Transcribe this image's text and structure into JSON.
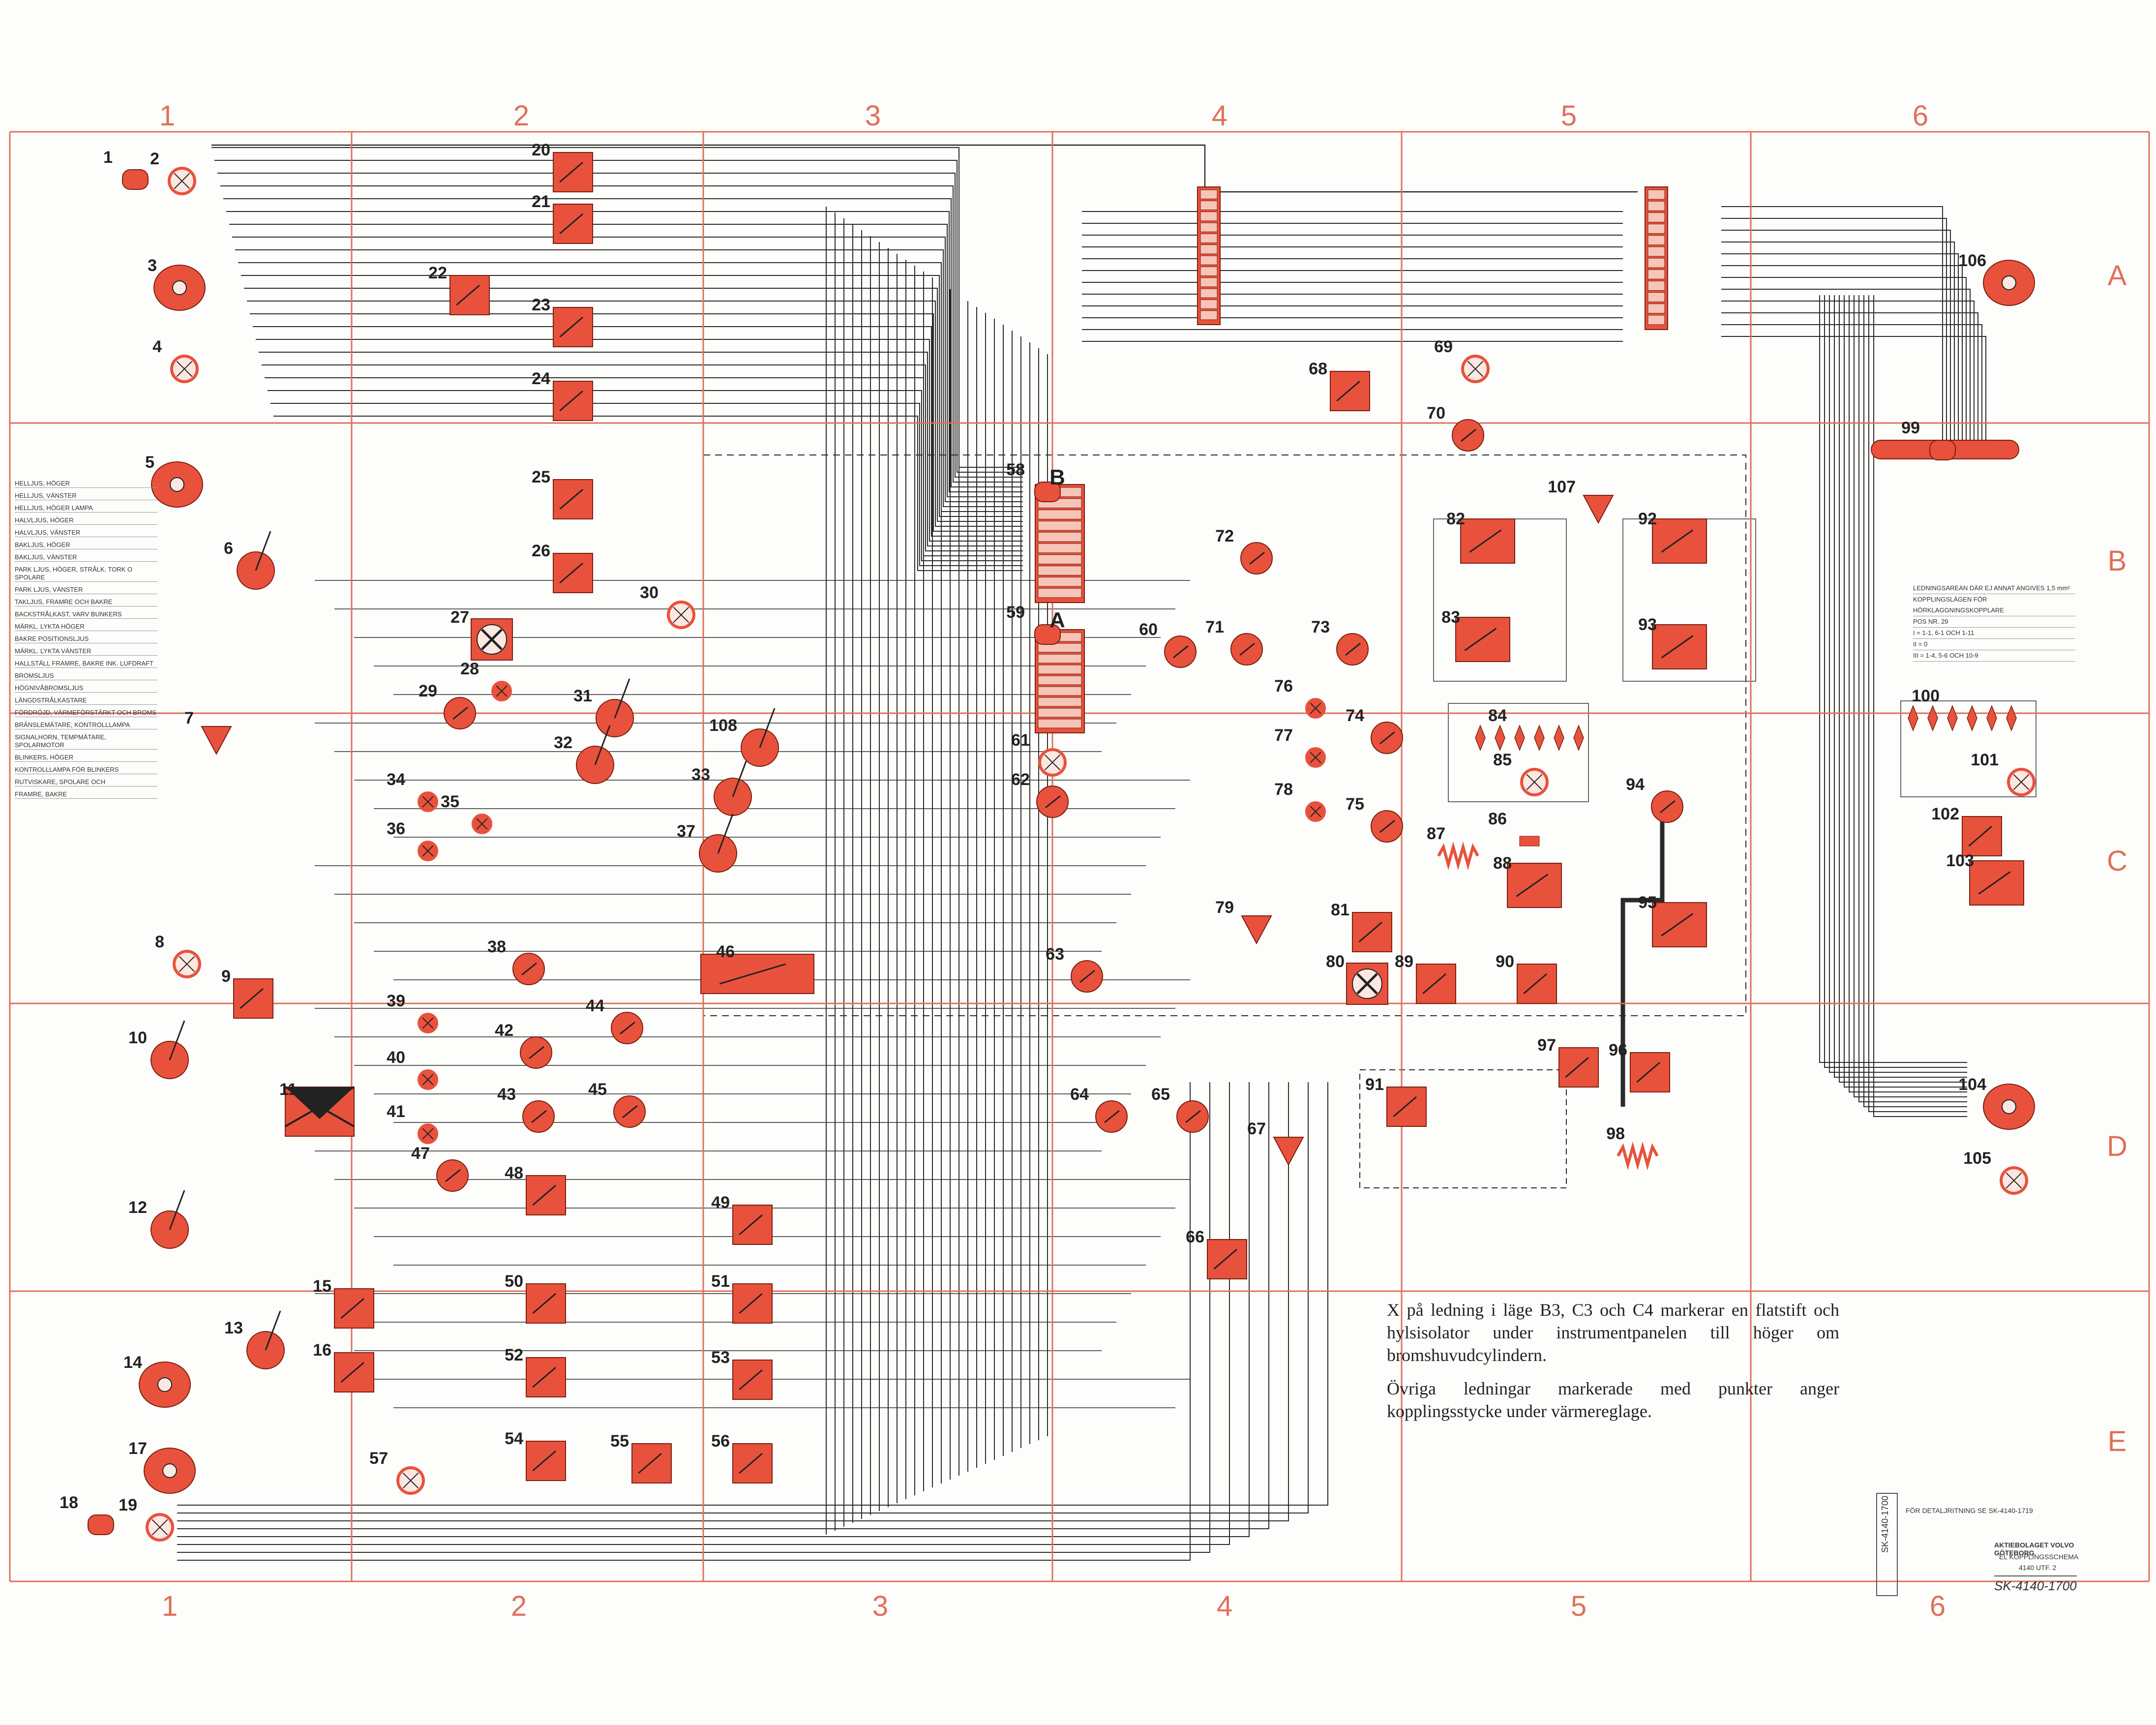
{
  "colors": {
    "component_fill": "#e8523c",
    "grid_line": "#e0705a",
    "wire": "#2a2a2a"
  },
  "grid": {
    "columns": [
      "1",
      "2",
      "3",
      "4",
      "5",
      "6"
    ],
    "rows": [
      "A",
      "B",
      "C",
      "D",
      "E"
    ]
  },
  "connector_letters": [
    "B",
    "A"
  ],
  "components": [
    {
      "n": "1",
      "kind": "connector"
    },
    {
      "n": "2",
      "kind": "lamp"
    },
    {
      "n": "3",
      "kind": "headlamp"
    },
    {
      "n": "4",
      "kind": "lamp"
    },
    {
      "n": "5",
      "kind": "headlamp"
    },
    {
      "n": "6",
      "kind": "switch"
    },
    {
      "n": "7",
      "kind": "horn"
    },
    {
      "n": "8",
      "kind": "lamp"
    },
    {
      "n": "9",
      "kind": "relay"
    },
    {
      "n": "10",
      "kind": "switch"
    },
    {
      "n": "11",
      "kind": "fusebox"
    },
    {
      "n": "12",
      "kind": "switch"
    },
    {
      "n": "13",
      "kind": "switch"
    },
    {
      "n": "14",
      "kind": "headlamp"
    },
    {
      "n": "15",
      "kind": "relay"
    },
    {
      "n": "16",
      "kind": "relay"
    },
    {
      "n": "17",
      "kind": "headlamp"
    },
    {
      "n": "18",
      "kind": "connector"
    },
    {
      "n": "19",
      "kind": "lamp"
    },
    {
      "n": "20",
      "kind": "relay"
    },
    {
      "n": "21",
      "kind": "relay"
    },
    {
      "n": "22",
      "kind": "relay"
    },
    {
      "n": "23",
      "kind": "relay"
    },
    {
      "n": "24",
      "kind": "relay"
    },
    {
      "n": "25",
      "kind": "relay"
    },
    {
      "n": "26",
      "kind": "relay"
    },
    {
      "n": "27",
      "kind": "fan"
    },
    {
      "n": "28",
      "kind": "indicator"
    },
    {
      "n": "29",
      "kind": "gauge"
    },
    {
      "n": "30",
      "kind": "lamp"
    },
    {
      "n": "31",
      "kind": "switch"
    },
    {
      "n": "32",
      "kind": "switch"
    },
    {
      "n": "33",
      "kind": "switch"
    },
    {
      "n": "34",
      "kind": "indicator"
    },
    {
      "n": "35",
      "kind": "indicator"
    },
    {
      "n": "36",
      "kind": "indicator"
    },
    {
      "n": "37",
      "kind": "switch"
    },
    {
      "n": "38",
      "kind": "gauge"
    },
    {
      "n": "39",
      "kind": "indicator"
    },
    {
      "n": "40",
      "kind": "indicator"
    },
    {
      "n": "41",
      "kind": "indicator"
    },
    {
      "n": "42",
      "kind": "gauge"
    },
    {
      "n": "43",
      "kind": "gauge"
    },
    {
      "n": "44",
      "kind": "gauge"
    },
    {
      "n": "45",
      "kind": "gauge"
    },
    {
      "n": "46",
      "kind": "relay-group"
    },
    {
      "n": "47",
      "kind": "gauge"
    },
    {
      "n": "48",
      "kind": "relay"
    },
    {
      "n": "49",
      "kind": "relay"
    },
    {
      "n": "50",
      "kind": "relay"
    },
    {
      "n": "51",
      "kind": "relay"
    },
    {
      "n": "52",
      "kind": "relay"
    },
    {
      "n": "53",
      "kind": "relay"
    },
    {
      "n": "54",
      "kind": "relay"
    },
    {
      "n": "55",
      "kind": "relay"
    },
    {
      "n": "56",
      "kind": "relay"
    },
    {
      "n": "57",
      "kind": "lamp"
    },
    {
      "n": "58",
      "kind": "terminal"
    },
    {
      "n": "59",
      "kind": "terminal"
    },
    {
      "n": "60",
      "kind": "gauge"
    },
    {
      "n": "61",
      "kind": "lamp"
    },
    {
      "n": "62",
      "kind": "gauge"
    },
    {
      "n": "63",
      "kind": "gauge"
    },
    {
      "n": "64",
      "kind": "gauge"
    },
    {
      "n": "65",
      "kind": "gauge"
    },
    {
      "n": "66",
      "kind": "relay"
    },
    {
      "n": "67",
      "kind": "sensor"
    },
    {
      "n": "68",
      "kind": "relay"
    },
    {
      "n": "69",
      "kind": "lamp"
    },
    {
      "n": "70",
      "kind": "gauge"
    },
    {
      "n": "71",
      "kind": "gauge"
    },
    {
      "n": "72",
      "kind": "gauge"
    },
    {
      "n": "73",
      "kind": "gauge"
    },
    {
      "n": "74",
      "kind": "gauge"
    },
    {
      "n": "75",
      "kind": "gauge"
    },
    {
      "n": "76",
      "kind": "indicator"
    },
    {
      "n": "77",
      "kind": "indicator"
    },
    {
      "n": "78",
      "kind": "indicator"
    },
    {
      "n": "79",
      "kind": "sensor"
    },
    {
      "n": "80",
      "kind": "fan"
    },
    {
      "n": "81",
      "kind": "relay"
    },
    {
      "n": "82",
      "kind": "unit"
    },
    {
      "n": "83",
      "kind": "unit"
    },
    {
      "n": "84",
      "kind": "diodes"
    },
    {
      "n": "85",
      "kind": "lamp"
    },
    {
      "n": "86",
      "kind": "capacitor"
    },
    {
      "n": "87",
      "kind": "resistor"
    },
    {
      "n": "88",
      "kind": "unit"
    },
    {
      "n": "89",
      "kind": "relay"
    },
    {
      "n": "90",
      "kind": "relay"
    },
    {
      "n": "91",
      "kind": "relay"
    },
    {
      "n": "92",
      "kind": "unit"
    },
    {
      "n": "93",
      "kind": "unit"
    },
    {
      "n": "94",
      "kind": "gauge"
    },
    {
      "n": "95",
      "kind": "unit"
    },
    {
      "n": "96",
      "kind": "relay"
    },
    {
      "n": "97",
      "kind": "relay"
    },
    {
      "n": "98",
      "kind": "resistor"
    },
    {
      "n": "99",
      "kind": "connector-strip"
    },
    {
      "n": "100",
      "kind": "diodes"
    },
    {
      "n": "101",
      "kind": "lamp"
    },
    {
      "n": "102",
      "kind": "relay"
    },
    {
      "n": "103",
      "kind": "unit"
    },
    {
      "n": "104",
      "kind": "tail-lamp"
    },
    {
      "n": "105",
      "kind": "lamp"
    },
    {
      "n": "106",
      "kind": "tail-lamp"
    },
    {
      "n": "107",
      "kind": "sensor"
    },
    {
      "n": "108",
      "kind": "switch"
    }
  ],
  "legend_items": [
    "HELLJUS, HÖGER",
    "HELLJUS, VÄNSTER",
    "HELLJUS, HÖGER LAMPA",
    "HALVLJUS, HÖGER",
    "HALVLJUS, VÄNSTER",
    "BAKLJUS, HÖGER",
    "BAKLJUS, VÄNSTER",
    "PARK LJUS, HÖGER, STRÅLK. TORK O SPOLARE",
    "PARK LJUS, VÄNSTER",
    "TAKLJUS, FRAMRE OCH BAKRE",
    "BACKSTRÅLKAST, VARV BUNKERS",
    "MÄRKL. LYKTA HÖGER",
    "BAKRE POSITIONSLJUS",
    "MÄRKL. LYKTA VÄNSTER",
    "HALLSTÄLL FRAMRE, BAKRE INK. LUFDRAFT",
    "BROMSLJUS",
    "HÖGNIVÅBROMSLJUS",
    "LÄNGDSTRÅLKASTARE",
    "FÖRDRÖJD, VÄRMEFÖRSTÄRKT OCH BROMS",
    "BRÄNSLEMÄTARE, KONTROLLLAMPA",
    "SIGNALHORN, TEMPMÄTARE, SPOLARMOTOR",
    "BLINKERS, HÖGER",
    "KONTROLLLAMPA FÖR BLINKERS",
    "RUTVISKARE, SPOLARE OCH",
    "FRAMRE, BAKRE"
  ],
  "info_box": {
    "line1": "LEDNINGSAREAN DÄR EJ ANNAT ANGIVES 1,5 mm²",
    "line2": "KOPPLINGSLÄGEN FÖR HÖRKLAGGNINGSKOPPLARE",
    "line3": "POS NR. 29",
    "line4": "I = 1-1, 6-1 OCH 1-11",
    "line5": "II = 0",
    "line6": "III = 1-4, 5-6 OCH 10-9"
  },
  "notes": {
    "p1": "X på ledning i läge B3, C3 och C4 markerar en flatstift och hylsisolator under instrumentpanelen till höger om bromshuvudcylindern.",
    "p2": "Övriga ledningar markerade med punkter anger kopplingsstycke under värmereglage."
  },
  "title_block": {
    "stamp": "SK-4140-1700",
    "ref": "FÖR DETALJRITNING SE  SK-4140-1719",
    "company": "AKTIEBOLAGET VOLVO GÖTEBORG",
    "sheet_title": "EL KOPPLINGSSCHEMA",
    "sheet_sub": "4140 UTF. 2",
    "drawing_no": "SK-4140-1700"
  }
}
